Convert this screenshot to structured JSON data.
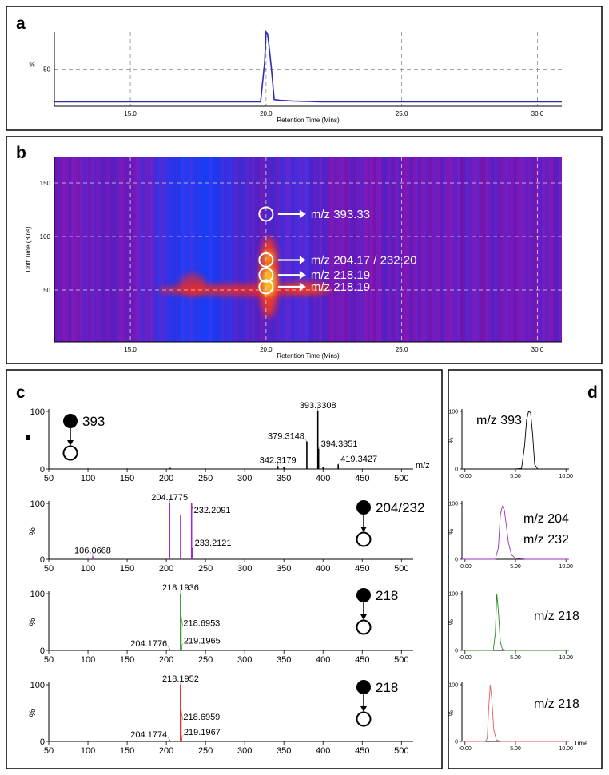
{
  "chart_data": [
    {
      "type": "line",
      "panel": "a",
      "xlabel": "Retention Time (Mins)",
      "ylabel": "%",
      "x": [
        12.2,
        13,
        14,
        15,
        16,
        17,
        18,
        19,
        19.8,
        19.95,
        20.0,
        20.05,
        20.1,
        20.2,
        20.3,
        20.5,
        21,
        22,
        23,
        24,
        25,
        26,
        27,
        28,
        29,
        30,
        30.9
      ],
      "series": [
        {
          "color": "#2b2bb5",
          "values": [
            6,
            6,
            6,
            6,
            6,
            6,
            6,
            6,
            6,
            60,
            100,
            98,
            85,
            50,
            9,
            8,
            7,
            6,
            6,
            6,
            6,
            6,
            6,
            6,
            6,
            6,
            6
          ]
        }
      ],
      "xlim": [
        12.2,
        30.9
      ],
      "ylim": [
        0,
        100
      ],
      "xticks": [
        {
          "value": 15,
          "label": "15.0"
        },
        {
          "value": 20,
          "label": "20.0"
        },
        {
          "value": 25,
          "label": "25.0"
        },
        {
          "value": 30,
          "label": "30.0"
        }
      ],
      "yticks": [
        50
      ],
      "grid": true
    },
    {
      "type": "heatmap",
      "panel": "b",
      "xlabel": "Retention Time (Mins)",
      "ylabel": "Drift Time (Bins)",
      "xlim": [
        12.2,
        30.9
      ],
      "ylim": [
        1.5,
        174.6
      ],
      "xticks": [
        {
          "value": 15,
          "label": "15.0"
        },
        {
          "value": 20,
          "label": "20.0"
        },
        {
          "value": 25,
          "label": "25.0"
        },
        {
          "value": 30,
          "label": "30.0"
        }
      ],
      "yticks": [
        50,
        100,
        150
      ],
      "grid": true,
      "annotations": [
        {
          "x": 20,
          "y": 121,
          "label": "m/z 393.33"
        },
        {
          "x": 20,
          "y": 78,
          "label": "m/z 204.17 / 232.20"
        },
        {
          "x": 20,
          "y": 64,
          "label": "m/z 218.19"
        },
        {
          "x": 20,
          "y": 53,
          "label": "m/z 218.19"
        }
      ]
    },
    {
      "type": "spectrum",
      "panel": "c",
      "precursor": "393",
      "xlabel": "m/z",
      "color": "#000000",
      "x": [
        100,
        150,
        205,
        250,
        342.3179,
        350,
        379.3148,
        393.3308,
        394.3351,
        400,
        419.3427
      ],
      "values": [
        1,
        1,
        2,
        1,
        5,
        3,
        48,
        100,
        35,
        4,
        8
      ],
      "labeled": [
        false,
        false,
        false,
        false,
        true,
        false,
        true,
        true,
        true,
        false,
        true
      ],
      "xlim": [
        50,
        515
      ],
      "ylim": [
        0,
        100
      ],
      "xticks": [
        50,
        100,
        150,
        200,
        250,
        300,
        350,
        400,
        450,
        500
      ],
      "yticks": [
        0,
        100
      ]
    },
    {
      "type": "spectrum",
      "precursor": "204/232",
      "ylabel": "%",
      "color": "#9b30c0",
      "x": [
        106.0668,
        150,
        204.1775,
        218.2,
        232.2091,
        233.2121
      ],
      "values": [
        5,
        1,
        100,
        80,
        100,
        20
      ],
      "labeled": [
        true,
        false,
        true,
        false,
        true,
        true
      ],
      "xlim": [
        50,
        515
      ],
      "ylim": [
        0,
        100
      ],
      "xticks": [
        50,
        100,
        150,
        200,
        250,
        300,
        350,
        400,
        450,
        500
      ],
      "yticks": [
        0,
        100
      ]
    },
    {
      "type": "spectrum",
      "precursor": "218",
      "ylabel": "%",
      "color": "#1f8a1f",
      "x": [
        95,
        204.1776,
        218.1936,
        218.6953,
        219.1965
      ],
      "values": [
        1,
        3,
        100,
        60,
        8
      ],
      "labeled": [
        false,
        true,
        true,
        true,
        true
      ],
      "xlim": [
        50,
        515
      ],
      "ylim": [
        0,
        100
      ],
      "xticks": [
        50,
        100,
        150,
        200,
        250,
        300,
        350,
        400,
        450,
        500
      ],
      "yticks": [
        0,
        100
      ]
    },
    {
      "type": "spectrum",
      "precursor": "218",
      "ylabel": "%",
      "color": "#e01010",
      "x": [
        95,
        204.1774,
        218.1952,
        218.6959,
        219.1967
      ],
      "values": [
        1,
        3,
        100,
        55,
        7
      ],
      "labeled": [
        false,
        true,
        true,
        true,
        true
      ],
      "xlim": [
        50,
        515
      ],
      "ylim": [
        0,
        100
      ],
      "xticks": [
        50,
        100,
        150,
        200,
        250,
        300,
        350,
        400,
        450,
        500
      ],
      "yticks": [
        0,
        100
      ]
    },
    {
      "type": "line",
      "panel": "d",
      "ylabel": "%",
      "labels": [
        "m/z 393"
      ],
      "x": [
        -0.3,
        0,
        1,
        2,
        3,
        4,
        5,
        5.6,
        5.9,
        6.1,
        6.3,
        6.5,
        6.7,
        6.9,
        7.2,
        8,
        9,
        10,
        10.3
      ],
      "series": [
        {
          "color": "#000000",
          "values": [
            0,
            0,
            0,
            0,
            0,
            0,
            0,
            1,
            40,
            85,
            100,
            98,
            60,
            8,
            0,
            0,
            0,
            0,
            0
          ]
        }
      ],
      "xlim": [
        -0.3,
        10.3
      ],
      "ylim": [
        0,
        100
      ],
      "xticks": [
        {
          "value": 0,
          "label": "-0.00"
        },
        {
          "value": 5,
          "label": "5.00"
        },
        {
          "value": 10,
          "label": "10.00"
        }
      ],
      "yticks": [
        0,
        100
      ]
    },
    {
      "type": "line",
      "ylabel": "%",
      "labels": [
        "m/z 204",
        "m/z 232"
      ],
      "x": [
        -0.3,
        0,
        1,
        2,
        3,
        3.3,
        3.5,
        3.7,
        3.9,
        4.1,
        4.3,
        4.6,
        5,
        6,
        7,
        8,
        9,
        10,
        10.3
      ],
      "series": [
        {
          "color": "#9b30c0",
          "values": [
            0,
            0,
            0,
            0,
            0,
            20,
            80,
            95,
            88,
            60,
            30,
            8,
            2,
            0,
            0,
            0,
            0,
            0,
            0
          ]
        }
      ],
      "xlim": [
        -0.3,
        10.3
      ],
      "ylim": [
        0,
        100
      ],
      "xticks": [
        {
          "value": 0,
          "label": "-0.00"
        },
        {
          "value": 5,
          "label": "5.00"
        },
        {
          "value": 10,
          "label": "10.00"
        }
      ],
      "yticks": [
        0,
        100
      ]
    },
    {
      "type": "line",
      "ylabel": "%",
      "labels": [
        "m/z 218"
      ],
      "x": [
        -0.3,
        0,
        1,
        2,
        2.8,
        3.0,
        3.15,
        3.3,
        3.5,
        3.7,
        4,
        5,
        6,
        7,
        8,
        9,
        10,
        10.3
      ],
      "series": [
        {
          "color": "#1f8a1f",
          "values": [
            0,
            0,
            0,
            0,
            0,
            30,
            100,
            70,
            15,
            2,
            0,
            0,
            0,
            0,
            0,
            0,
            0,
            0
          ]
        }
      ],
      "xlim": [
        -0.3,
        10.3
      ],
      "ylim": [
        0,
        100
      ],
      "xticks": [
        {
          "value": 0,
          "label": "-0.00"
        },
        {
          "value": 5,
          "label": "5.00"
        },
        {
          "value": 10,
          "label": "10.00"
        }
      ],
      "yticks": [
        0,
        100
      ]
    },
    {
      "type": "line",
      "ylabel": "%",
      "xlabel": "Time",
      "labels": [
        "m/z 218"
      ],
      "x": [
        -0.3,
        0,
        1,
        2,
        2.2,
        2.35,
        2.5,
        2.65,
        2.85,
        3.1,
        3.5,
        4,
        5,
        6,
        7,
        8,
        9,
        10,
        10.3
      ],
      "series": [
        {
          "color": "#e06060",
          "values": [
            0,
            0,
            0,
            0,
            5,
            60,
            100,
            75,
            20,
            3,
            0,
            0,
            0,
            0,
            0,
            0,
            0,
            0,
            0
          ]
        }
      ],
      "xlim": [
        -0.3,
        10.3
      ],
      "ylim": [
        0,
        100
      ],
      "xticks": [
        {
          "value": 0,
          "label": "-0.00"
        },
        {
          "value": 5,
          "label": "5.00"
        },
        {
          "value": 10,
          "label": "10.00"
        }
      ],
      "yticks": [
        0,
        100
      ]
    }
  ]
}
